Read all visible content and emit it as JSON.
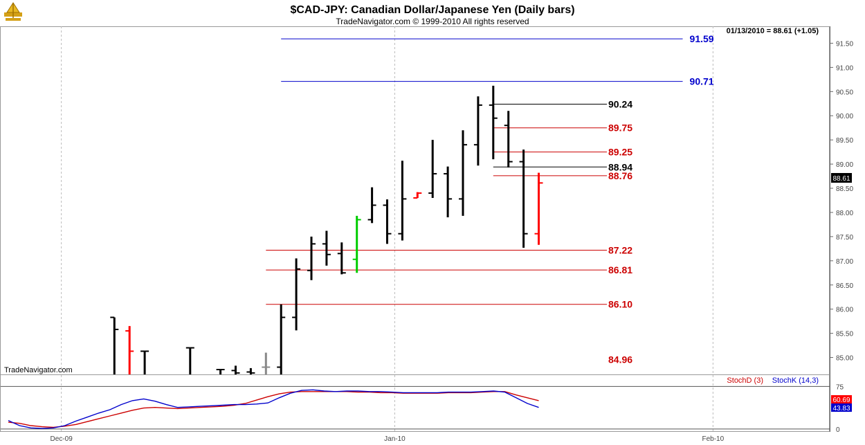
{
  "header": {
    "title": "$CAD-JPY:  Canadian Dollar/Japanese Yen  (Daily bars)",
    "copyright": "TradeNavigator.com © 1999-2010 All rights reserved"
  },
  "watermark": "TradeNavigator.com",
  "quote_readout": "01/13/2010 = 88.61 (+1.05)",
  "last_price_tag": "88.61",
  "colors": {
    "black_bar": "#000000",
    "up_red": "#ff0000",
    "green_bar": "#00cc00",
    "gray_bar": "#888888",
    "level_red": "#cc0000",
    "level_blue": "#0000cc",
    "level_black": "#000000",
    "stoch_d": "#cc0000",
    "stoch_k": "#0000cc"
  },
  "chart_data": {
    "type": "ohlc",
    "price_axis": {
      "range": [
        84.65,
        91.85
      ],
      "ticks": [
        "91.50",
        "91.00",
        "90.50",
        "90.00",
        "89.50",
        "89.00",
        "88.50",
        "88.00",
        "87.50",
        "87.00",
        "86.50",
        "86.00",
        "85.50",
        "85.00"
      ]
    },
    "x_axis": {
      "labels": [
        {
          "text": "Dec-09",
          "bar": 3.5
        },
        {
          "text": "Jan-10",
          "bar": 25.5
        },
        {
          "text": "Feb-10",
          "bar": 46.5
        }
      ]
    },
    "bars": [
      {
        "i": 7,
        "h": 85.83,
        "l": 84.65,
        "o": 85.83,
        "c": 85.58,
        "col": "black"
      },
      {
        "i": 8,
        "h": 85.65,
        "l": 84.65,
        "o": 85.55,
        "c": 85.13,
        "col": "red"
      },
      {
        "i": 9,
        "h": 85.13,
        "l": 84.65,
        "o": 85.13,
        "c": 85.13,
        "col": "black"
      },
      {
        "i": 12,
        "h": 85.2,
        "l": 84.65,
        "o": 85.2,
        "c": 85.2,
        "col": "black"
      },
      {
        "i": 14,
        "h": 84.75,
        "l": 84.65,
        "o": 84.75,
        "c": 84.75,
        "col": "black"
      },
      {
        "i": 15,
        "h": 84.83,
        "l": 84.65,
        "o": 84.73,
        "c": 84.68,
        "col": "black"
      },
      {
        "i": 16,
        "h": 84.78,
        "l": 84.65,
        "o": 84.7,
        "c": 84.68,
        "col": "black"
      },
      {
        "i": 17,
        "h": 85.1,
        "l": 84.65,
        "o": 84.8,
        "c": 84.8,
        "col": "gray"
      },
      {
        "i": 18,
        "h": 86.1,
        "l": 84.65,
        "o": 84.8,
        "c": 85.83,
        "col": "black"
      },
      {
        "i": 19,
        "h": 87.05,
        "l": 85.56,
        "o": 85.83,
        "c": 86.83,
        "col": "black"
      },
      {
        "i": 20,
        "h": 87.5,
        "l": 86.6,
        "o": 86.8,
        "c": 87.35,
        "col": "black"
      },
      {
        "i": 21,
        "h": 87.62,
        "l": 86.9,
        "o": 87.35,
        "c": 87.13,
        "col": "black"
      },
      {
        "i": 22,
        "h": 87.38,
        "l": 86.72,
        "o": 87.15,
        "c": 86.75,
        "col": "black"
      },
      {
        "i": 23,
        "h": 87.93,
        "l": 86.75,
        "o": 87.03,
        "c": 87.85,
        "col": "green"
      },
      {
        "i": 24,
        "h": 88.52,
        "l": 87.78,
        "o": 87.85,
        "c": 88.15,
        "col": "black"
      },
      {
        "i": 25,
        "h": 88.27,
        "l": 87.35,
        "o": 88.15,
        "c": 87.56,
        "col": "black"
      },
      {
        "i": 26,
        "h": 89.07,
        "l": 87.42,
        "o": 87.56,
        "c": 88.28,
        "col": "black"
      },
      {
        "i": 27,
        "h": 88.42,
        "l": 88.3,
        "o": 88.3,
        "c": 88.4,
        "col": "red"
      },
      {
        "i": 28,
        "h": 89.5,
        "l": 88.3,
        "o": 88.4,
        "c": 88.8,
        "col": "black"
      },
      {
        "i": 29,
        "h": 88.95,
        "l": 87.9,
        "o": 88.8,
        "c": 88.28,
        "col": "black"
      },
      {
        "i": 30,
        "h": 89.7,
        "l": 87.93,
        "o": 88.28,
        "c": 89.4,
        "col": "black"
      },
      {
        "i": 31,
        "h": 90.4,
        "l": 88.97,
        "o": 89.4,
        "c": 90.22,
        "col": "black"
      },
      {
        "i": 32,
        "h": 90.62,
        "l": 89.1,
        "o": 90.22,
        "c": 89.95,
        "col": "black"
      },
      {
        "i": 33,
        "h": 90.1,
        "l": 88.93,
        "o": 89.8,
        "c": 89.05,
        "col": "black"
      },
      {
        "i": 34,
        "h": 89.3,
        "l": 87.27,
        "o": 89.05,
        "c": 87.56,
        "col": "black"
      },
      {
        "i": 35,
        "h": 88.82,
        "l": 87.33,
        "o": 87.56,
        "c": 88.61,
        "col": "red"
      }
    ],
    "levels": [
      {
        "value": 91.59,
        "label": "91.59",
        "color": "blue",
        "x_from": 18.0,
        "x_to": 44.5
      },
      {
        "value": 90.71,
        "label": "90.71",
        "color": "blue",
        "x_from": 18.0,
        "x_to": 44.5
      },
      {
        "value": 90.24,
        "label": "90.24",
        "color": "black",
        "x_from": 32.0,
        "x_to": 39.5
      },
      {
        "value": 89.75,
        "label": "89.75",
        "color": "red",
        "x_from": 32.0,
        "x_to": 39.5
      },
      {
        "value": 89.25,
        "label": "89.25",
        "color": "red",
        "x_from": 32.0,
        "x_to": 39.5
      },
      {
        "value": 88.94,
        "label": "88.94",
        "color": "black",
        "x_from": 32.0,
        "x_to": 39.5
      },
      {
        "value": 88.76,
        "label": "88.76",
        "color": "red",
        "x_from": 32.0,
        "x_to": 39.5
      },
      {
        "value": 87.22,
        "label": "87.22",
        "color": "red",
        "x_from": 17.0,
        "x_to": 39.5
      },
      {
        "value": 86.81,
        "label": "86.81",
        "color": "red",
        "x_from": 17.0,
        "x_to": 39.5
      },
      {
        "value": 86.1,
        "label": "86.10",
        "color": "red",
        "x_from": 17.0,
        "x_to": 39.5
      },
      {
        "value": 84.96,
        "label": "84.96",
        "color": "red",
        "x_from": null,
        "x_to": null
      }
    ],
    "stochastic": {
      "legend_d": "StochD (3)",
      "legend_k": "StochK (14,3)",
      "range": [
        -5,
        95
      ],
      "ref_lines": [
        75,
        0
      ],
      "axis_labels": [
        "75",
        "0"
      ],
      "value_d": "60.69",
      "value_k": "43.83",
      "d_values": [
        12,
        10,
        6,
        4,
        3,
        5,
        8,
        13,
        18,
        23,
        28,
        33,
        37,
        38,
        37,
        36,
        37,
        38,
        39,
        40,
        42,
        45,
        51,
        57,
        62,
        65,
        66,
        66,
        66,
        66,
        66,
        65,
        65,
        64,
        64,
        63,
        63,
        63,
        63,
        64,
        64,
        64,
        65,
        66,
        66,
        60,
        55,
        50
      ],
      "k_values": [
        15,
        6,
        2,
        1,
        2,
        6,
        14,
        21,
        28,
        34,
        43,
        50,
        53,
        49,
        43,
        38,
        39,
        40,
        41,
        42,
        43,
        43,
        44,
        46,
        55,
        63,
        68,
        69,
        67,
        66,
        67,
        67,
        66,
        66,
        65,
        64,
        64,
        64,
        64,
        65,
        65,
        65,
        66,
        67,
        65,
        55,
        45,
        38
      ]
    }
  }
}
